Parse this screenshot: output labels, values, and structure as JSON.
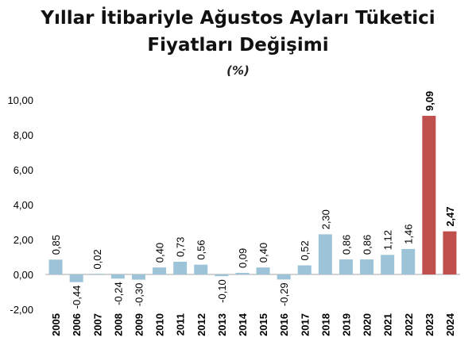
{
  "chart_data": {
    "type": "bar",
    "title_line1": "Yıllar İtibariyle  Ağustos Ayları Tüketici",
    "title_line2": "Fiyatları Değişimi",
    "subtitle": "(%)",
    "xlabel": "",
    "ylabel": "",
    "ylim": [
      -2,
      10
    ],
    "yticks": [
      "-2,00",
      "0,00",
      "2,00",
      "4,00",
      "6,00",
      "8,00",
      "10,00"
    ],
    "ytick_values": [
      -2,
      0,
      2,
      4,
      6,
      8,
      10
    ],
    "grid": false,
    "legend": "none",
    "categories": [
      "2005",
      "2006",
      "2007",
      "2008",
      "2009",
      "2010",
      "2011",
      "2012",
      "2013",
      "2014",
      "2015",
      "2016",
      "2017",
      "2018",
      "2019",
      "2020",
      "2021",
      "2022",
      "2023",
      "2024"
    ],
    "values": [
      0.85,
      -0.44,
      0.02,
      -0.24,
      -0.3,
      0.4,
      0.73,
      0.56,
      -0.1,
      0.09,
      0.4,
      -0.29,
      0.52,
      2.3,
      0.86,
      0.86,
      1.12,
      1.46,
      9.09,
      2.47
    ],
    "labels": [
      "0,85",
      "-0,44",
      "0,02",
      "-0,24",
      "-0,30",
      "0,40",
      "0,73",
      "0,56",
      "-0,10",
      "0,09",
      "0,40",
      "-0,29",
      "0,52",
      "2,30",
      "0,86",
      "0,86",
      "1,12",
      "1,46",
      "9,09",
      "2,47"
    ],
    "highlight": [
      false,
      false,
      false,
      false,
      false,
      false,
      false,
      false,
      false,
      false,
      false,
      false,
      false,
      false,
      false,
      false,
      false,
      false,
      true,
      true
    ],
    "colors": {
      "normal": "#9DC3D8",
      "highlight": "#C0504D",
      "zero_line": "#A6A6A6",
      "text": "#000000"
    }
  }
}
